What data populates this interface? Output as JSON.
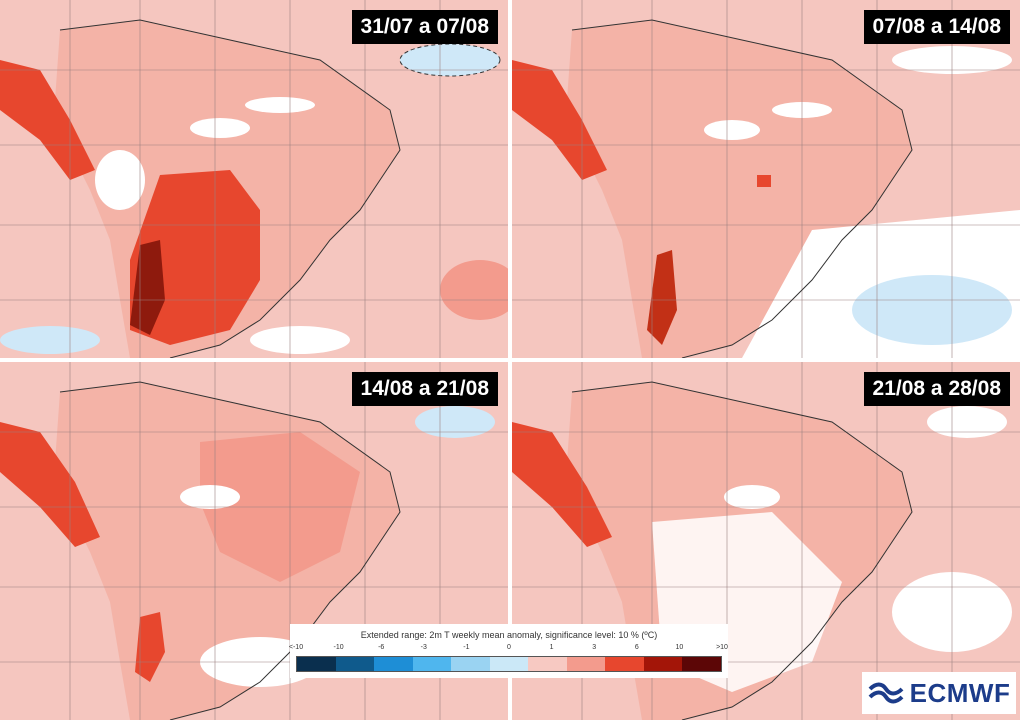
{
  "panels": [
    {
      "label": "31/07 a 07/08"
    },
    {
      "label": "07/08 a 14/08"
    },
    {
      "label": "14/08 a 21/08"
    },
    {
      "label": "21/08 a 28/08"
    }
  ],
  "legend": {
    "title": "Extended range: 2m T weekly mean anomaly, significance level: 10 % (ºC)",
    "ticks": [
      "<-10",
      "-10",
      "-6",
      "-3",
      "-1",
      "0",
      "1",
      "3",
      "6",
      "10",
      ">10"
    ],
    "colors": [
      "#0a2f4e",
      "#0f5a8c",
      "#1e8ed6",
      "#4fb6ee",
      "#9ad3f2",
      "#cbe8f7",
      "#f7c9c2",
      "#f39b8d",
      "#e7472e",
      "#a31508",
      "#5c0606"
    ]
  },
  "map_colors": {
    "ocean": "#f5c6bf",
    "land_mild": "#f4b3a7",
    "warm": "#f08b78",
    "hot": "#e7472e",
    "very_hot": "#c23016",
    "extreme": "#8e1a0d",
    "cold_white": "#ffffff",
    "cold_blue": "#cfe8f8"
  },
  "logo": {
    "text": "ECMWF"
  }
}
